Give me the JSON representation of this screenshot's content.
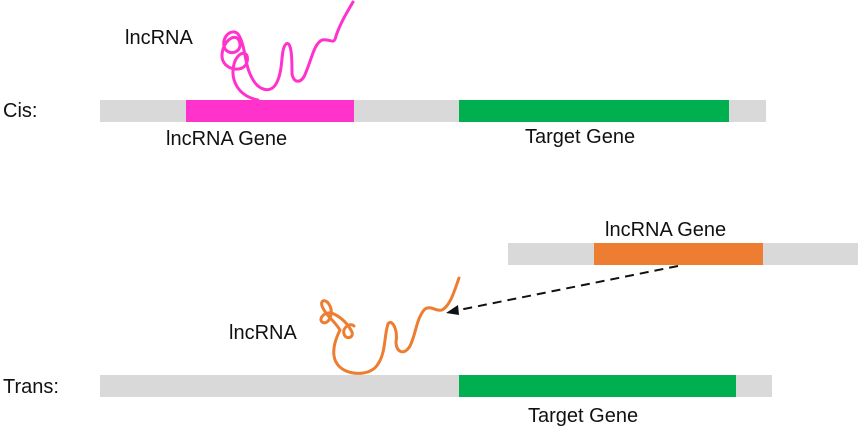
{
  "cis": {
    "row_label": "Cis:",
    "lncrna_label": "lncRNA",
    "lncrna_gene_label": "lncRNA Gene",
    "target_gene_label": "Target Gene"
  },
  "trans": {
    "row_label": "Trans:",
    "lncrna_label": "lncRNA",
    "lncrna_gene_label": "lncRNA Gene",
    "target_gene_label": "Target Gene"
  },
  "colors": {
    "dna_strand": "#d9d9d9",
    "cis_lncrna": "#ff33cc",
    "trans_lncrna": "#ed7d31",
    "target_gene": "#00b050",
    "arrow": "#111111"
  }
}
